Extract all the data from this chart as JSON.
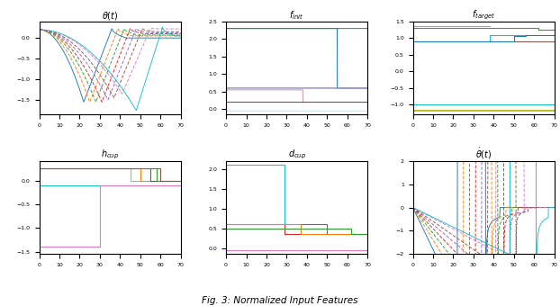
{
  "title": "Fig. 3: Normalized Input Features",
  "colors": [
    "#1f77b4",
    "#ff7f0e",
    "#2ca02c",
    "#d62728",
    "#9467bd",
    "#8c564b",
    "#e377c2",
    "#17becf"
  ],
  "theta_colors": [
    "#1f77b4",
    "#ff7f0e",
    "#2ca02c",
    "#d62728",
    "#9467bd",
    "#8c564b",
    "#e377c2",
    "#17becf"
  ],
  "trough_times": [
    22,
    25,
    28,
    31,
    34,
    37,
    41,
    48
  ],
  "min_vals": [
    -1.55,
    -1.55,
    -1.55,
    -1.55,
    -1.5,
    -1.45,
    -1.35,
    -1.75
  ],
  "peak_times": [
    36,
    39,
    42,
    45,
    48,
    51,
    55,
    61
  ],
  "peak_vals": [
    0.23,
    0.23,
    0.23,
    0.23,
    0.23,
    0.23,
    0.23,
    0.26
  ],
  "end_times": [
    43,
    46,
    49,
    52,
    55,
    57,
    62,
    67
  ],
  "end_vals": [
    0.0,
    0.05,
    0.07,
    0.1,
    0.12,
    0.15,
    0.22,
    0.05
  ],
  "dashed_indices": [
    1,
    2,
    3,
    4,
    5,
    6
  ],
  "f_init_lines": [
    {
      "v1": 2.3,
      "v2": 2.3,
      "sw": 55,
      "color": "#2ca02c"
    },
    {
      "v1": 2.3,
      "v2": 0.6,
      "sw": 55,
      "color": "#1f77b4"
    },
    {
      "v1": 0.6,
      "v2": 0.6,
      "sw": 70,
      "color": "#17becf"
    },
    {
      "v1": 0.55,
      "v2": 0.2,
      "sw": 38,
      "color": "#c8a0a0"
    },
    {
      "v1": 0.6,
      "v2": 0.6,
      "sw": 38,
      "color": "#e377c2"
    },
    {
      "v1": 0.2,
      "v2": 0.2,
      "sw": 70,
      "color": "#d62728"
    },
    {
      "v1": -0.05,
      "v2": -0.05,
      "sw": 30,
      "color": "#aaeeff"
    }
  ],
  "f_target_lines": [
    {
      "v1": 1.35,
      "v2": 1.35,
      "sw": 38,
      "color": "#e377c2"
    },
    {
      "v1": 1.3,
      "v2": 1.3,
      "sw": 62,
      "color": "#2ca02c"
    },
    {
      "v1": 0.9,
      "v2": 0.9,
      "sw": 70,
      "color": "#8c564b"
    },
    {
      "v1": 0.9,
      "v2": 1.1,
      "sw": 38,
      "color": "#17becf"
    },
    {
      "v1": 1.1,
      "v2": 1.1,
      "sw": 50,
      "color": "#1f77b4"
    },
    {
      "v1": -1.0,
      "v2": -1.0,
      "sw": 70,
      "color": "#17becf"
    },
    {
      "v1": -1.15,
      "v2": -1.15,
      "sw": 70,
      "color": "#bcbd22"
    },
    {
      "v1": -1.2,
      "v2": -1.2,
      "sw": 70,
      "color": "#d0b080"
    }
  ],
  "h_cup_lines": [
    {
      "v1": 0.27,
      "v2": 0.27,
      "sw": 45,
      "color": "#bcbd22"
    },
    {
      "v1": 0.27,
      "v2": 0.27,
      "sw": 50,
      "color": "#ff7f0e"
    },
    {
      "v1": 0.27,
      "v2": 0.27,
      "sw": 55,
      "color": "#d62728"
    },
    {
      "v1": 0.27,
      "v2": 0.27,
      "sw": 58,
      "color": "#2ca02c"
    },
    {
      "v1": 0.27,
      "v2": 0.27,
      "sw": 60,
      "color": "#8c564b"
    },
    {
      "v1": -0.1,
      "v2": -0.1,
      "sw": 70,
      "color": "#17becf"
    },
    {
      "v1": -1.4,
      "v2": -0.1,
      "sw": 30,
      "color": "#e377c2"
    }
  ],
  "d_cup_lines": [
    {
      "v1": 2.1,
      "v2": 2.1,
      "sw": 29,
      "color": "#17becf"
    },
    {
      "v1": 0.6,
      "v2": 0.35,
      "sw": 29,
      "color": "#d62728"
    },
    {
      "v1": 0.6,
      "v2": 0.35,
      "sw": 50,
      "color": "#1f77b4"
    },
    {
      "v1": 0.6,
      "v2": 0.35,
      "sw": 37,
      "color": "#ff7f0e"
    },
    {
      "v1": 0.5,
      "v2": 0.5,
      "sw": 62,
      "color": "#2ca02c"
    },
    {
      "v1": -0.05,
      "v2": -0.05,
      "sw": 29,
      "color": "#e377c2"
    }
  ],
  "xmax": 70,
  "ylim_theta": [
    -1.85,
    0.4
  ],
  "ylim_finit": [
    -0.15,
    2.5
  ],
  "ylim_ftarget": [
    -1.3,
    1.5
  ],
  "ylim_hcup": [
    -1.55,
    0.42
  ],
  "ylim_dcup": [
    -0.15,
    2.2
  ],
  "ylim_dtheta": [
    -2.0,
    2.0
  ]
}
